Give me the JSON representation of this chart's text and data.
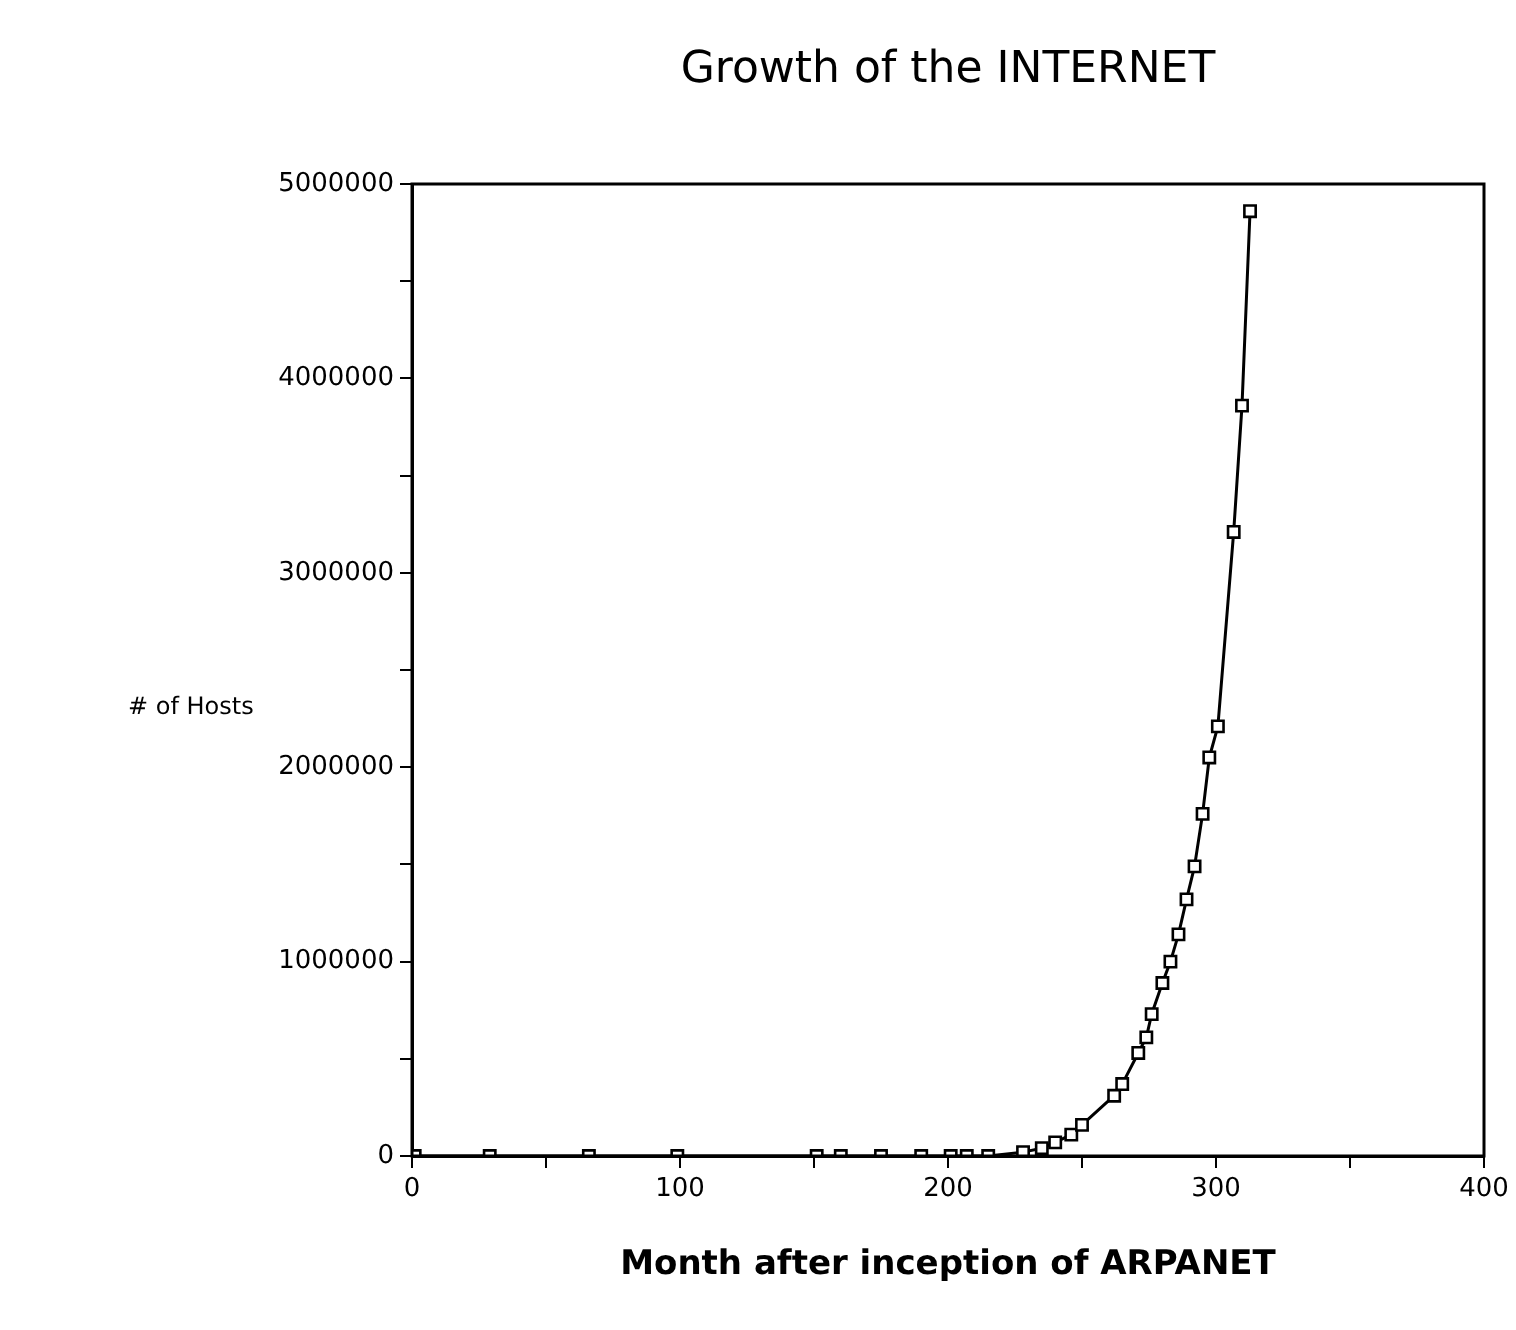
{
  "chart_data": {
    "type": "line",
    "title": "Growth of the INTERNET",
    "xlabel": "Month after inception of ARPANET",
    "ylabel": "# of Hosts",
    "x": [
      1,
      29,
      66,
      99,
      151,
      160,
      175,
      190,
      201,
      207,
      215,
      228,
      235,
      240,
      246,
      250,
      262,
      265,
      271,
      274,
      276,
      280,
      283,
      286,
      289,
      292,
      295,
      297.5,
      300.7,
      306.6,
      309.7,
      312.7
    ],
    "series": [
      {
        "color": "#000000",
        "values": [
          0,
          0,
          0,
          0,
          0,
          0,
          0,
          0,
          0,
          0,
          0,
          20000,
          40000,
          70000,
          110000,
          160000,
          310000,
          370000,
          530000,
          610000,
          730000,
          890000,
          1000000,
          1140000,
          1320000,
          1490000,
          1760000,
          2050000,
          2210000,
          3210000,
          3860000,
          4860000
        ]
      }
    ],
    "xlim": [
      0,
      400
    ],
    "ylim": [
      0,
      5000000
    ],
    "xticks": [
      0,
      {
        "value": 50,
        "label": null
      },
      100,
      {
        "value": 150,
        "label": null
      },
      200,
      {
        "value": 250,
        "label": null
      },
      300,
      {
        "value": 350,
        "label": null
      },
      400
    ],
    "yticks": [
      0,
      {
        "value": 500000,
        "label": null
      },
      1000000,
      {
        "value": 1500000,
        "label": null
      },
      2000000,
      {
        "value": 2500000,
        "label": null
      },
      3000000,
      {
        "value": 3500000,
        "label": null
      },
      4000000,
      {
        "value": 4500000,
        "label": null
      },
      5000000
    ],
    "marker": "square",
    "grid": false,
    "legend": false
  }
}
